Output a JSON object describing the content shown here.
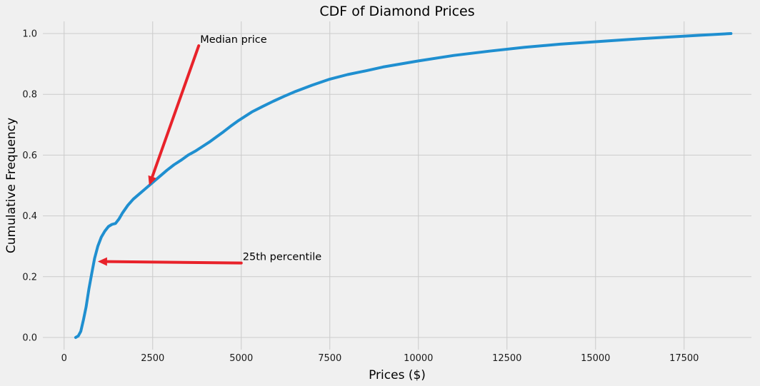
{
  "chart_data": {
    "type": "line",
    "title": "CDF of Diamond Prices",
    "xlabel": "Prices ($)",
    "ylabel": "Cumulative Frequency",
    "xlim": [
      -600,
      19400
    ],
    "ylim": [
      -0.04,
      1.04
    ],
    "x_ticks": [
      0,
      2500,
      5000,
      7500,
      10000,
      12500,
      15000,
      17500
    ],
    "x_tick_labels": [
      "0",
      "2500",
      "5000",
      "7500",
      "10000",
      "12500",
      "15000",
      "17500"
    ],
    "y_ticks": [
      0.0,
      0.2,
      0.4,
      0.6,
      0.8,
      1.0
    ],
    "y_tick_labels": [
      "0.0",
      "0.2",
      "0.4",
      "0.6",
      "0.8",
      "1.0"
    ],
    "grid": true,
    "series": [
      {
        "color": "#1f8fd0",
        "x": [
          326,
          400,
          470,
          550,
          620,
          700,
          780,
          860,
          950,
          1050,
          1150,
          1250,
          1350,
          1450,
          1550,
          1650,
          1800,
          1950,
          2100,
          2250,
          2400,
          2550,
          2700,
          2900,
          3100,
          3300,
          3500,
          3700,
          3900,
          4100,
          4300,
          4500,
          4700,
          4900,
          5100,
          5300,
          5600,
          5900,
          6200,
          6500,
          7000,
          7500,
          8000,
          8500,
          9000,
          9500,
          10000,
          11000,
          12000,
          13000,
          14000,
          15000,
          16000,
          17000,
          18000,
          18823
        ],
        "y": [
          0.0,
          0.005,
          0.02,
          0.06,
          0.1,
          0.16,
          0.21,
          0.26,
          0.3,
          0.33,
          0.35,
          0.365,
          0.372,
          0.375,
          0.39,
          0.41,
          0.435,
          0.455,
          0.47,
          0.485,
          0.5,
          0.515,
          0.53,
          0.55,
          0.568,
          0.583,
          0.6,
          0.613,
          0.628,
          0.643,
          0.66,
          0.677,
          0.695,
          0.712,
          0.727,
          0.742,
          0.76,
          0.777,
          0.793,
          0.808,
          0.83,
          0.85,
          0.865,
          0.877,
          0.89,
          0.9,
          0.91,
          0.928,
          0.942,
          0.955,
          0.965,
          0.973,
          0.981,
          0.988,
          0.995,
          1.0
        ]
      }
    ],
    "annotations": [
      {
        "text": "Median price",
        "text_x": 3800,
        "text_y": 0.96,
        "arrow_to_x": 2401,
        "arrow_to_y": 0.5,
        "color": "#e8222a"
      },
      {
        "text": "25th percentile",
        "text_x": 5000,
        "text_y": 0.245,
        "arrow_to_x": 950,
        "arrow_to_y": 0.25,
        "color": "#e8222a"
      }
    ]
  }
}
